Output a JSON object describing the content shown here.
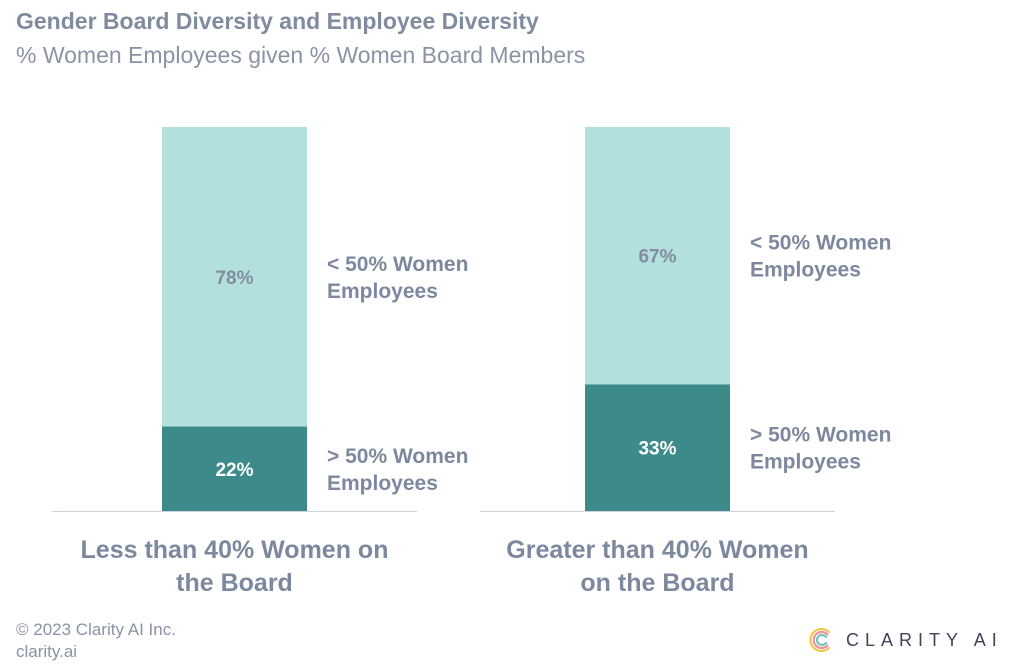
{
  "title": "Gender Board Diversity and Employee Diversity",
  "subtitle": "% Women Employees given % Women Board Members",
  "colors": {
    "light_segment": "#b2e0dc",
    "dark_segment": "#3d8a8b",
    "light_value_text": "#828da1",
    "dark_value_text": "#ffffff",
    "text": "#7d889e"
  },
  "chart_data": {
    "type": "bar",
    "stacked": true,
    "categories": [
      "Less than 40% Women on the Board",
      "Greater than 40% Women on the Board"
    ],
    "category_label_lines": [
      [
        "Less than 40% Women on",
        "the Board"
      ],
      [
        "Greater than 40% Women",
        "on the Board"
      ]
    ],
    "series": [
      {
        "name": "> 50% Women Employees",
        "label_lines": [
          "> 50% Women",
          "Employees"
        ],
        "values": [
          22,
          33
        ],
        "value_labels": [
          "22%",
          "33%"
        ]
      },
      {
        "name": "< 50% Women Employees",
        "label_lines": [
          "< 50% Women",
          "Employees"
        ],
        "values": [
          78,
          67
        ],
        "value_labels": [
          "78%",
          "67%"
        ]
      }
    ],
    "ylim": [
      0,
      100
    ],
    "grid": false,
    "legend": "inline-right-of-each-bar"
  },
  "footer": {
    "copyright": "© 2023 Clarity AI Inc.",
    "url": "clarity.ai"
  },
  "logo": {
    "text": "CLARITY AI",
    "icon": "clarity-ai-logo-icon"
  }
}
